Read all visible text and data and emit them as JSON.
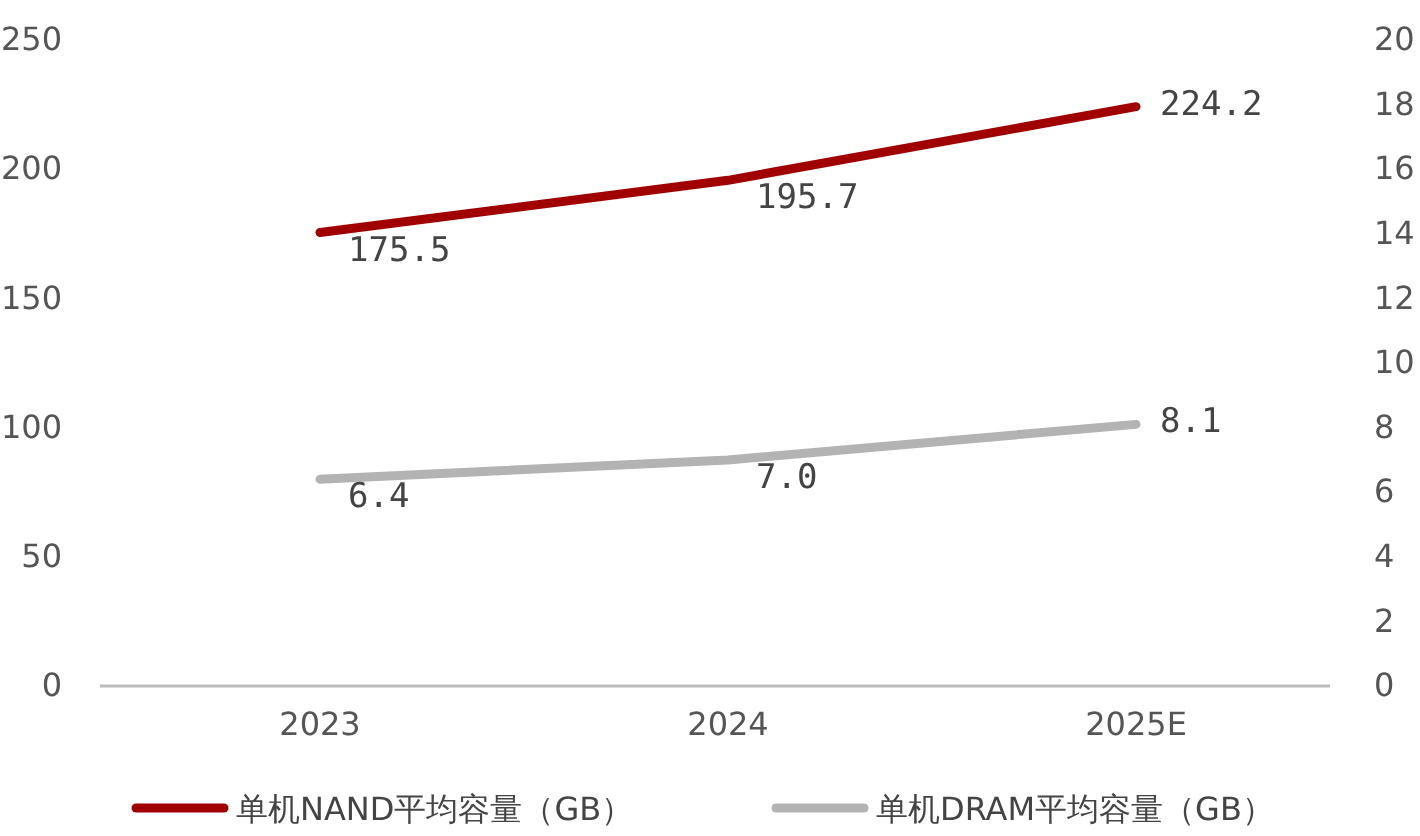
{
  "chart_data": {
    "type": "line",
    "categories": [
      "2023",
      "2024",
      "2025E"
    ],
    "series": [
      {
        "name": "单机NAND平均容量（GB）",
        "color": "#a00000",
        "values": [
          175.5,
          195.7,
          224.2
        ],
        "value_labels": [
          "175.5",
          "195.7",
          "224.2"
        ]
      },
      {
        "name": "单机DRAM平均容量（GB）",
        "color": "#b3b3b3",
        "values": [
          6.4,
          7.0,
          8.1
        ],
        "value_labels": [
          "6.4",
          "7.0",
          "8.1"
        ],
        "axis": "y2"
      }
    ],
    "ylim": [
      0,
      250
    ],
    "yticks": [
      0,
      50,
      100,
      150,
      200,
      250
    ],
    "y2lim": [
      0,
      20
    ],
    "y2ticks": [
      0,
      2,
      4,
      6,
      8,
      10,
      12,
      14,
      16,
      18,
      20
    ],
    "legend": "bottom",
    "grid": false,
    "marker": "none",
    "line_style": "solid"
  }
}
